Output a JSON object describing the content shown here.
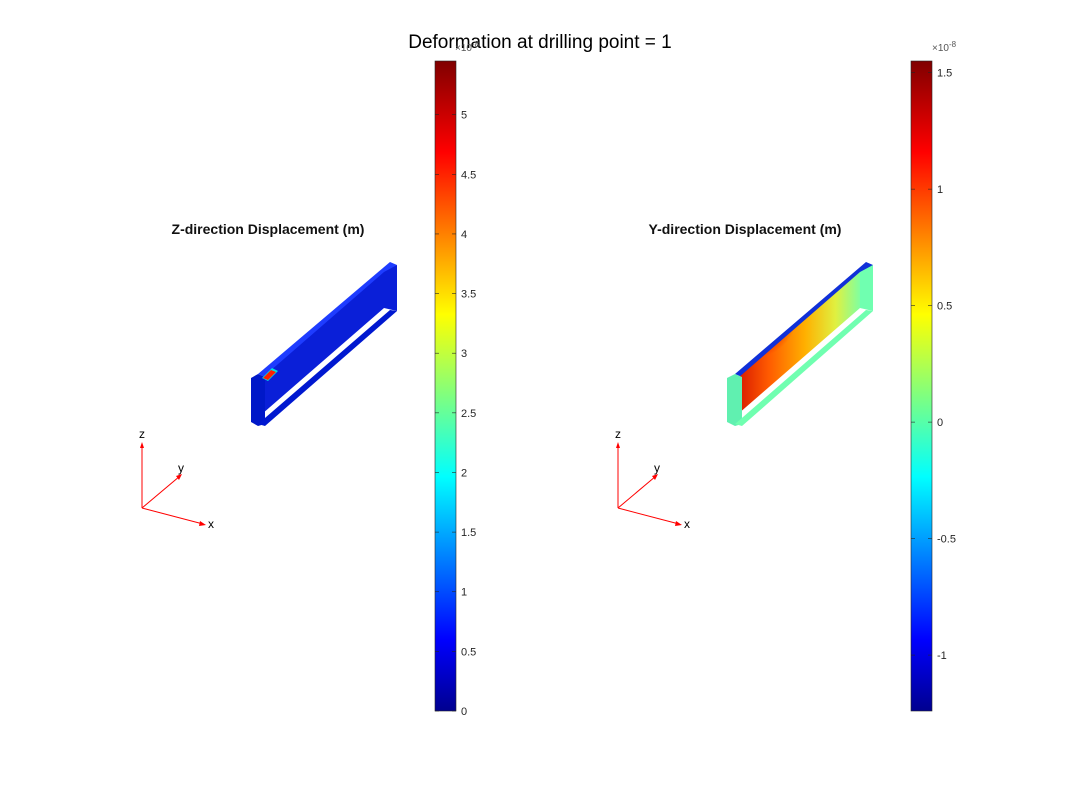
{
  "figure": {
    "title": "Deformation at drilling point = 1"
  },
  "panels": [
    {
      "title": "Z-direction Displacement (m)",
      "colorbar": {
        "exponent_prefix": "×10",
        "exponent_power": "-8",
        "min": 0,
        "max": 5.45,
        "ticks": [
          "0",
          "0.5",
          "1",
          "1.5",
          "2",
          "2.5",
          "3",
          "3.5",
          "4",
          "4.5",
          "5"
        ],
        "tick_values": [
          0,
          0.5,
          1,
          1.5,
          2,
          2.5,
          3,
          3.5,
          4,
          4.5,
          5
        ]
      },
      "triad": {
        "x": "x",
        "y": "y",
        "z": "z"
      }
    },
    {
      "title": "Y-direction Displacement (m)",
      "colorbar": {
        "exponent_prefix": "×10",
        "exponent_power": "-8",
        "min": -1.24,
        "max": 1.55,
        "ticks": [
          "-1",
          "-0.5",
          "0",
          "0.5",
          "1",
          "1.5"
        ],
        "tick_values": [
          -1,
          -0.5,
          0,
          0.5,
          1,
          1.5
        ]
      },
      "triad": {
        "x": "x",
        "y": "y",
        "z": "z"
      }
    }
  ],
  "colormap": "jet",
  "colors": {
    "jet_dark_blue": "#00008f",
    "jet_blue": "#0000ff",
    "jet_cyan": "#00ffff",
    "jet_yellow": "#ffff00",
    "jet_red": "#ff0000",
    "jet_dark_red": "#800000",
    "triad_axis": "#ff0000"
  }
}
